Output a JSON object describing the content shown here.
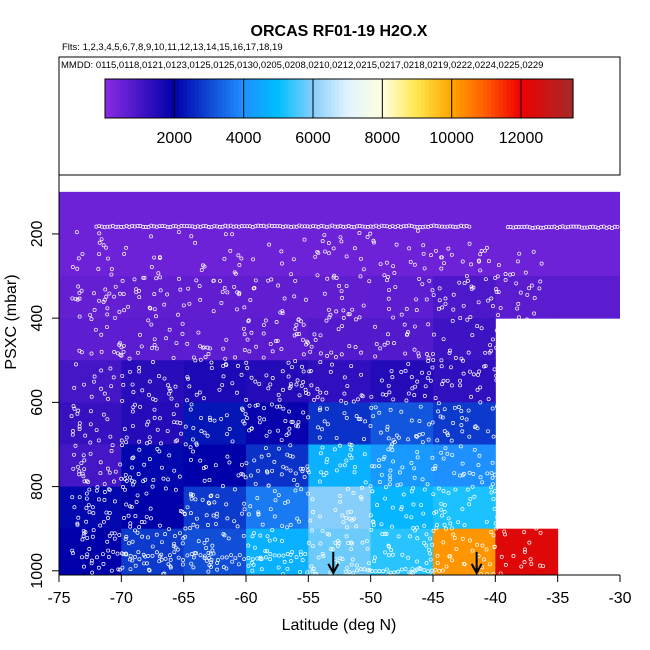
{
  "chart_data": {
    "type": "heatmap",
    "title": "ORCAS RF01-19 H2O.X",
    "flights_line": "Flts: 1,2,3,4,5,6,7,8,9,10,11,12,13,14,15,16,17,18,19",
    "dates_line": "MMDD: 0115,0118,0121,0123,0125,0125,0130,0205,0208,0210,0212,0215,0217,0218,0219,0222,0224,0225,0229",
    "xlabel": "Latitude (deg N)",
    "ylabel": "PSXC (mbar)",
    "xlim": [
      -75,
      -30
    ],
    "ylim": [
      1010,
      60
    ],
    "x_ticks": [
      -75,
      -70,
      -65,
      -60,
      -55,
      -50,
      -45,
      -40,
      -35,
      -30
    ],
    "y_ticks": [
      200,
      400,
      600,
      800,
      1000
    ],
    "colorbar": {
      "min": 0,
      "max": 13500,
      "ticks": [
        2000,
        4000,
        6000,
        8000,
        10000,
        12000
      ],
      "stops": [
        {
          "v": 0,
          "c": "#8a2be2"
        },
        {
          "v": 2000,
          "c": "#0000aa"
        },
        {
          "v": 4000,
          "c": "#1e90ff"
        },
        {
          "v": 5000,
          "c": "#00bfff"
        },
        {
          "v": 6000,
          "c": "#87cefa"
        },
        {
          "v": 7000,
          "c": "#e0f4ff"
        },
        {
          "v": 8000,
          "c": "#ffffe0"
        },
        {
          "v": 9000,
          "c": "#ffe64d"
        },
        {
          "v": 10000,
          "c": "#ffa500"
        },
        {
          "v": 11000,
          "c": "#ff5a00"
        },
        {
          "v": 12000,
          "c": "#ee0000"
        },
        {
          "v": 13500,
          "c": "#a52a2a"
        }
      ]
    },
    "lat_bins": [
      -75,
      -70,
      -65,
      -60,
      -55,
      -50,
      -45,
      -40,
      -35
    ],
    "pres_bins": [
      100,
      200,
      300,
      400,
      500,
      600,
      700,
      800,
      900,
      1010
    ],
    "values": [
      [
        400,
        400,
        400,
        400,
        400,
        400,
        400,
        400
      ],
      [
        400,
        400,
        400,
        400,
        400,
        400,
        400,
        400
      ],
      [
        550,
        600,
        600,
        600,
        600,
        650,
        900,
        700
      ],
      [
        650,
        700,
        650,
        700,
        800,
        800,
        1100,
        null
      ],
      [
        1000,
        1400,
        1600,
        1500,
        1300,
        1500,
        1300,
        null
      ],
      [
        1200,
        1500,
        2300,
        1900,
        2700,
        3200,
        2800,
        null
      ],
      [
        1000,
        2100,
        2000,
        2700,
        4700,
        4200,
        4000,
        null
      ],
      [
        2100,
        2000,
        2800,
        3700,
        6000,
        4800,
        5200,
        null
      ],
      [
        2000,
        2800,
        3100,
        4700,
        5800,
        5300,
        10200,
        12300
      ],
      [
        5000,
        4800,
        5200,
        5300,
        8000,
        10000,
        10400,
        13300
      ]
    ],
    "arrows_lat": [
      -53,
      -41.5
    ]
  }
}
